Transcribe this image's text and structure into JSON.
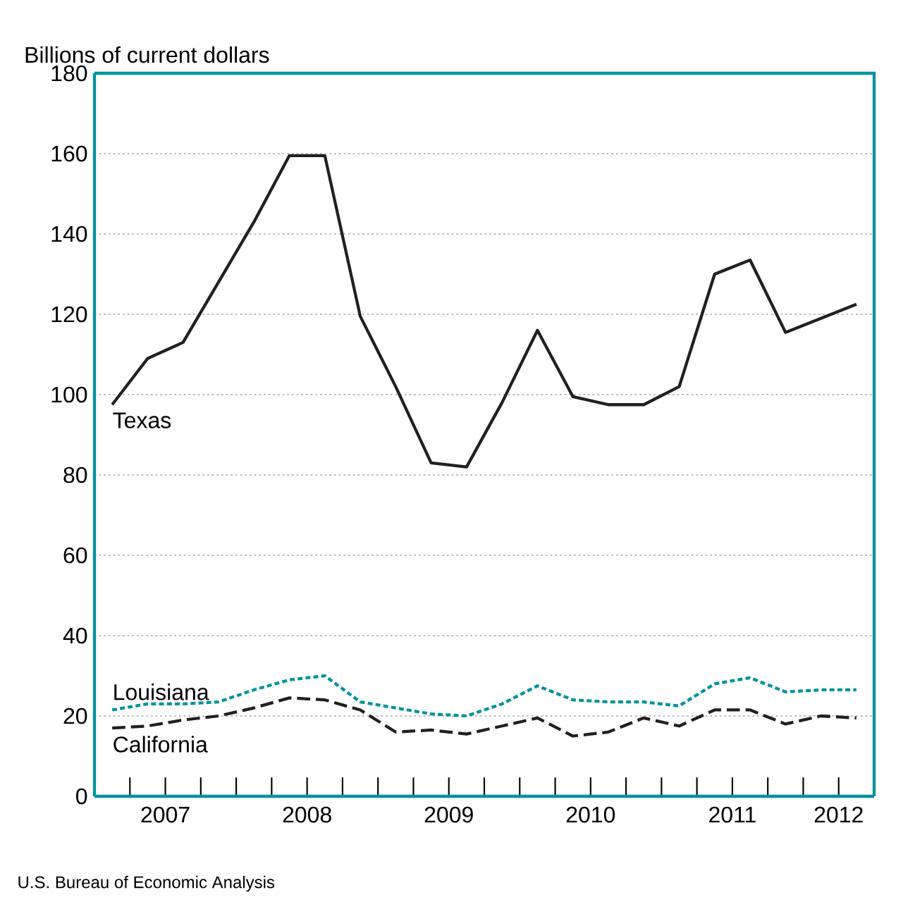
{
  "chart_data": {
    "type": "line",
    "ylabel": "Billions of current dollars",
    "annotations": [
      "U.S. Bureau of Economic Analysis"
    ],
    "x": [
      2007.125,
      2007.375,
      2007.625,
      2007.875,
      2008.125,
      2008.375,
      2008.625,
      2008.875,
      2009.125,
      2009.375,
      2009.625,
      2009.875,
      2010.125,
      2010.375,
      2010.625,
      2010.875,
      2011.125,
      2011.375,
      2011.625,
      2011.875,
      2012.125,
      2012.375
    ],
    "series": [
      {
        "name": "Texas",
        "color": "#231f20",
        "line_style": "solid",
        "values": [
          97.5,
          109,
          113,
          128,
          143,
          159.5,
          159.5,
          119.5,
          102,
          83,
          82,
          98,
          116,
          99.5,
          97.5,
          97.5,
          102,
          130,
          133.5,
          115.5,
          119,
          122.5
        ]
      },
      {
        "name": "Louisiana",
        "color": "#00929f",
        "line_style": "dotted",
        "values": [
          21.5,
          23,
          23,
          23.5,
          26.5,
          29,
          30,
          23.5,
          22,
          20.5,
          20,
          23,
          27.5,
          24,
          23.5,
          23.5,
          22.5,
          28,
          29.5,
          26,
          26.5,
          26.5
        ]
      },
      {
        "name": "California",
        "color": "#231f20",
        "line_style": "dashed",
        "values": [
          17,
          17.5,
          19,
          20,
          22,
          24.5,
          24,
          21.5,
          16,
          16.5,
          15.5,
          17.5,
          19.5,
          15,
          16,
          19.5,
          17.5,
          21.5,
          21.5,
          18,
          20,
          19.5
        ]
      }
    ],
    "xlim": [
      2007,
      2012.5
    ],
    "xticks": [
      {
        "value": 2007.25,
        "label": null
      },
      {
        "value": 2007.5,
        "label": "2007"
      },
      {
        "value": 2007.75,
        "label": null
      },
      {
        "value": 2008,
        "label": null
      },
      {
        "value": 2008.25,
        "label": null
      },
      {
        "value": 2008.5,
        "label": "2008"
      },
      {
        "value": 2008.75,
        "label": null
      },
      {
        "value": 2009,
        "label": null
      },
      {
        "value": 2009.25,
        "label": null
      },
      {
        "value": 2009.5,
        "label": "2009"
      },
      {
        "value": 2009.75,
        "label": null
      },
      {
        "value": 2010,
        "label": null
      },
      {
        "value": 2010.25,
        "label": null
      },
      {
        "value": 2010.5,
        "label": "2010"
      },
      {
        "value": 2010.75,
        "label": null
      },
      {
        "value": 2011,
        "label": null
      },
      {
        "value": 2011.25,
        "label": null
      },
      {
        "value": 2011.5,
        "label": "2011"
      },
      {
        "value": 2011.75,
        "label": null
      },
      {
        "value": 2012,
        "label": null
      },
      {
        "value": 2012.25,
        "label": "2012"
      }
    ],
    "ylim": [
      0,
      180
    ],
    "yticks": [
      0,
      20,
      40,
      60,
      80,
      100,
      120,
      140,
      160,
      180
    ],
    "grid": "y",
    "legend": false,
    "marker": "none"
  }
}
